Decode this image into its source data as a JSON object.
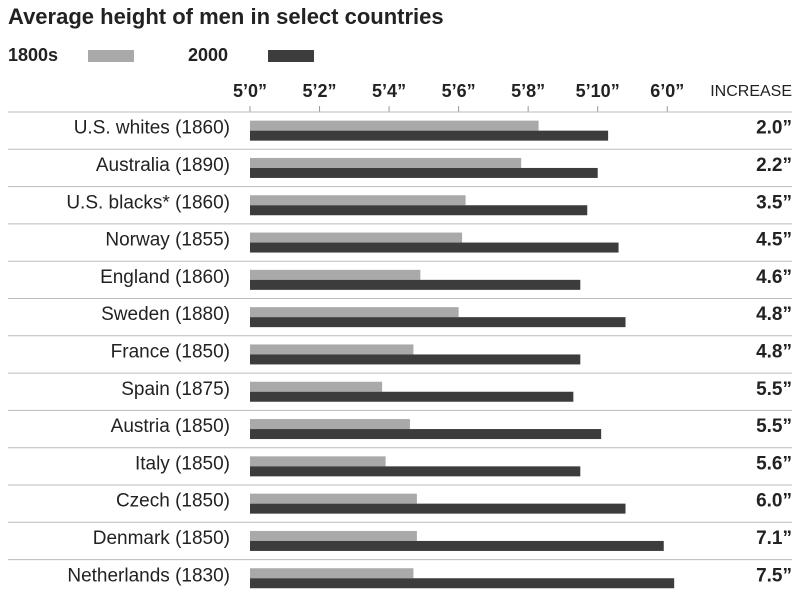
{
  "chart_data": {
    "type": "bar",
    "orientation": "horizontal",
    "title": "Average height of men in select countries",
    "increase_header": "INCREASE",
    "categories": [
      "U.S. whites (1860)",
      "Australia (1890)",
      "U.S. blacks* (1860)",
      "Norway (1855)",
      "England (1860)",
      "Sweden (1880)",
      "France (1850)",
      "Spain (1875)",
      "Austria (1850)",
      "Italy (1850)",
      "Czech (1850)",
      "Denmark (1850)",
      "Netherlands (1830)"
    ],
    "series": [
      {
        "name": "1800s",
        "color": "#a9a9a9",
        "values": [
          68.3,
          67.8,
          66.2,
          66.1,
          64.9,
          66.0,
          64.7,
          63.8,
          64.6,
          63.9,
          64.8,
          64.8,
          64.7
        ]
      },
      {
        "name": "2000",
        "color": "#3c3c3c",
        "values": [
          70.3,
          70.0,
          69.7,
          70.6,
          69.5,
          70.8,
          69.5,
          69.3,
          70.1,
          69.5,
          70.8,
          71.9,
          72.2
        ]
      }
    ],
    "increase": [
      "2.0”",
      "2.2”",
      "3.5”",
      "4.5”",
      "4.6”",
      "4.8”",
      "4.8”",
      "5.5”",
      "5.5”",
      "5.6”",
      "6.0”",
      "7.1”",
      "7.5”"
    ],
    "xlim": [
      60,
      73
    ],
    "xticks": [
      {
        "value": 60,
        "label": "5’0”"
      },
      {
        "value": 62,
        "label": "5’2”"
      },
      {
        "value": 64,
        "label": "5’4”"
      },
      {
        "value": 66,
        "label": "5’6”"
      },
      {
        "value": 68,
        "label": "5’8”"
      },
      {
        "value": 70,
        "label": "5’10”"
      },
      {
        "value": 72,
        "label": "6’0”"
      }
    ],
    "grid": false,
    "legend": "top-left"
  }
}
